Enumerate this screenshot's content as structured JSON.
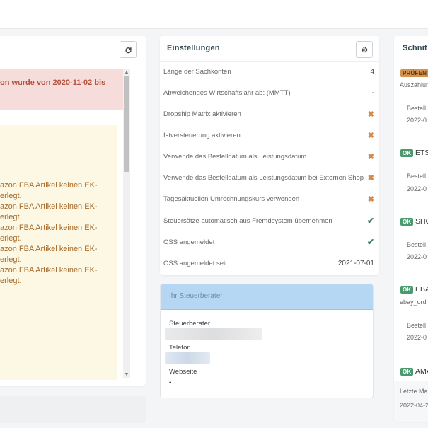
{
  "left": {
    "alert_line1": "on wurde von 2020-11-02 bis",
    "yellow_lines": [
      "azon FBA Artikel keinen EK-",
      "erlegt.",
      "azon FBA Artikel keinen EK-",
      "erlegt.",
      "azon FBA Artikel keinen EK-",
      "erlegt.",
      "azon FBA Artikel keinen EK-",
      "erlegt.",
      "azon FBA Artikel keinen EK-",
      "erlegt."
    ],
    "refresh_icon": "refresh-icon"
  },
  "settings": {
    "title": "Einstellungen",
    "gear_icon": "gear-icon",
    "rows": [
      {
        "label": "Länge der Sachkonten",
        "value": "4"
      },
      {
        "label": "Abweichendes Wirtschaftsjahr ab: (MMTT)",
        "value": "-"
      },
      {
        "label": "Dropship Matrix aktivieren",
        "value": "✖"
      },
      {
        "label": "Istversteuerung aktivieren",
        "value": "✖"
      },
      {
        "label": "Verwende das Bestelldatum als Leistungsdatum",
        "value": "✖"
      },
      {
        "label": "Verwende das Bestelldatum als Leistungsdatum bei Externen Shop",
        "value": "✖"
      },
      {
        "label": "Tagesaktuellen Umrechnungskurs verwenden",
        "value": "✖"
      },
      {
        "label": "Steuersätze automatisch aus Fremdsystem übernehmen",
        "value": "✔"
      },
      {
        "label": "OSS angemeldet",
        "value": "✔"
      },
      {
        "label": "OSS angemeldet seit",
        "value": "2021-07-01"
      }
    ]
  },
  "advisor": {
    "title": "Ihr Steuerberater",
    "label_advisor": "Steuerberater",
    "label_phone": "Telefon",
    "label_website": "Webseite",
    "website_value": "-"
  },
  "right": {
    "title": "Schnit",
    "badge_check": "PRÜFEN",
    "auszahlung": "Auszahlun",
    "items": [
      {
        "badge": "OK",
        "name": "ETS",
        "sub": "",
        "bestell": "Bestell",
        "date": "2022-0"
      },
      {
        "badge": "OK",
        "name": "SHO",
        "sub": "",
        "bestell": "Bestell",
        "date": "2022-0"
      },
      {
        "badge": "OK",
        "name": "EBA",
        "sub": "ebay_ord",
        "bestell": "Bestell",
        "date": "2022-0"
      },
      {
        "badge": "OK",
        "name": "AMA",
        "sub": "",
        "bestell": "",
        "date": ""
      }
    ],
    "first_bestell": "Bestell",
    "first_date": "2022-0",
    "footer_label": "Letzte Ma",
    "footer_date": "2022-04-2"
  }
}
